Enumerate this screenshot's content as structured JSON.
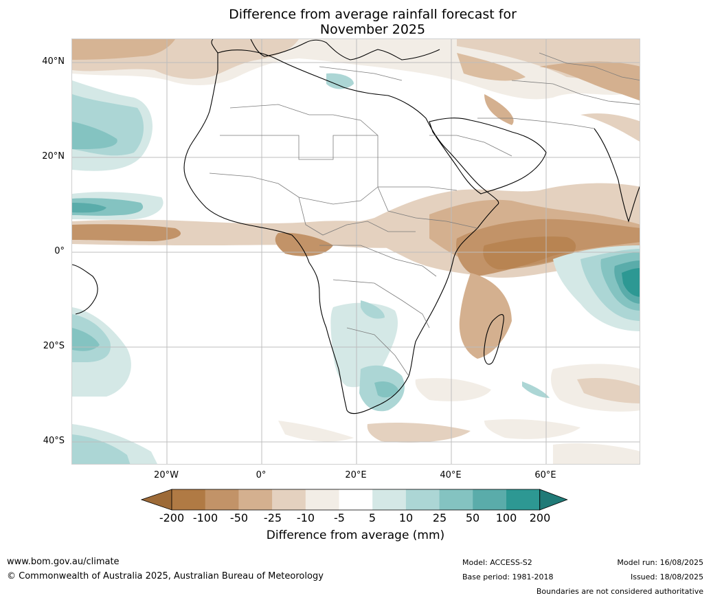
{
  "title_lines": [
    "Difference from average rainfall forecast for",
    "November 2025"
  ],
  "map": {
    "lat_labels": [
      "40°N",
      "20°N",
      "0°",
      "20°S",
      "40°S"
    ],
    "lon_labels": [
      "20°W",
      "0°",
      "20°E",
      "40°E",
      "60°E"
    ],
    "extent": {
      "lon_min": -40,
      "lon_max": 80,
      "lat_min": -45,
      "lat_max": 45
    }
  },
  "colorbar": {
    "ticks": [
      "-200",
      "-100",
      "-50",
      "-25",
      "-10",
      "-5",
      "5",
      "10",
      "25",
      "50",
      "100",
      "200"
    ],
    "colors": [
      "#9d6a37",
      "#b07a44",
      "#c29368",
      "#d4b08f",
      "#e4d1bf",
      "#f2ede6",
      "#ffffff",
      "#d4e8e6",
      "#acd6d5",
      "#84c3c1",
      "#5aacaa",
      "#2d9893",
      "#207a77"
    ],
    "label": "Difference from average (mm)"
  },
  "footer": {
    "website": "www.bom.gov.au/climate",
    "copyright": "© Commonwealth of Australia 2025, Australian Bureau of Meteorology",
    "model": "Model: ACCESS-S2",
    "base_period": "Base period: 1981-2018",
    "model_run": "Model run: 16/08/2025",
    "issued": "Issued: 18/08/2025",
    "disclaimer": "Boundaries are not considered authoritative"
  }
}
